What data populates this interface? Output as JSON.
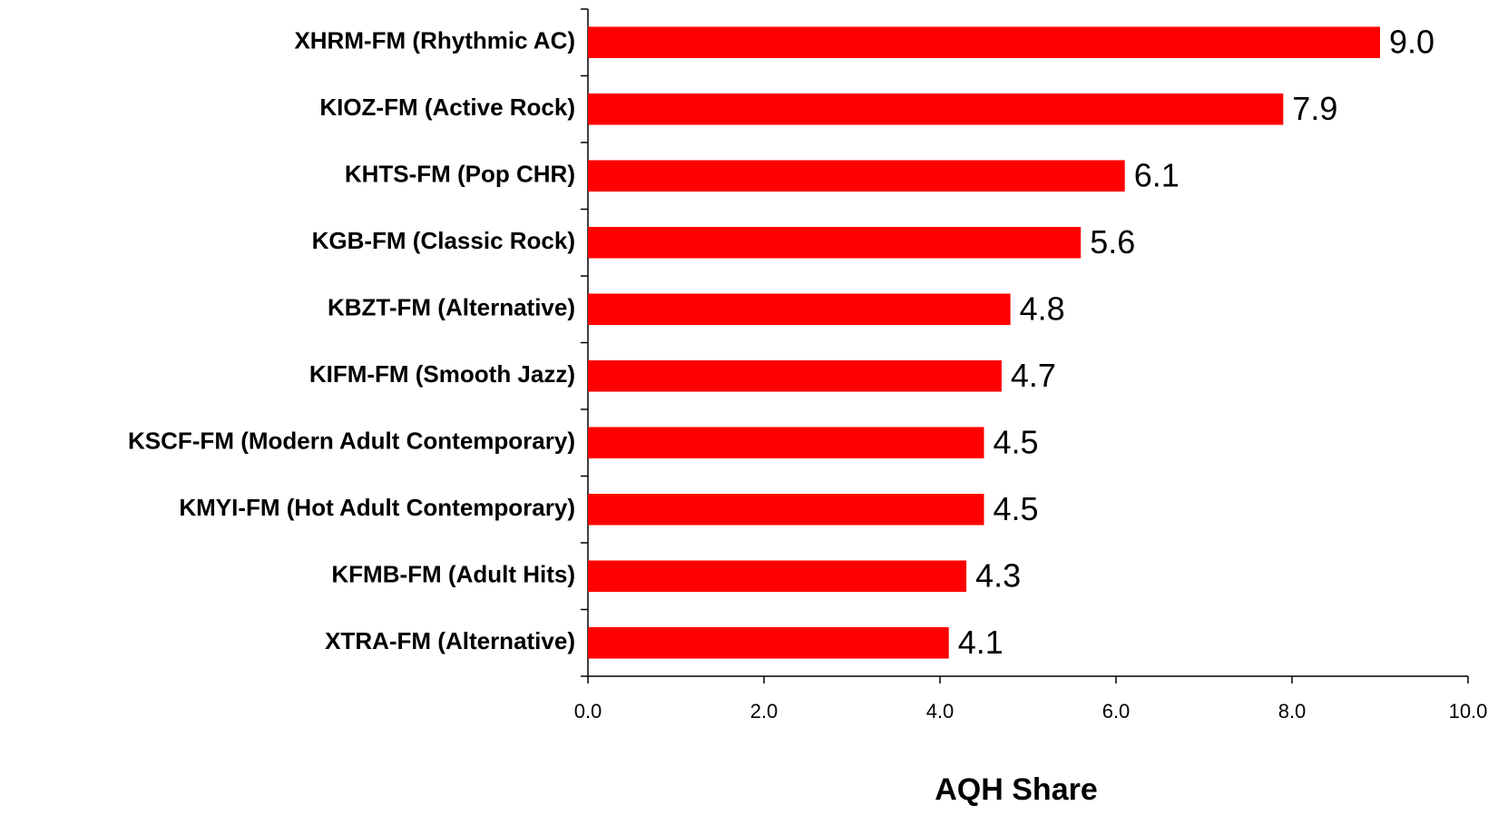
{
  "chart_data": {
    "type": "hbar",
    "x_label": "AQH Share",
    "categories": [
      "XHRM-FM (Rhythmic AC)",
      "KIOZ-FM (Active Rock)",
      "KHTS-FM (Pop CHR)",
      "KGB-FM (Classic Rock)",
      "KBZT-FM (Alternative)",
      "KIFM-FM (Smooth Jazz)",
      "KSCF-FM (Modern Adult Contemporary)",
      "KMYI-FM (Hot Adult Contemporary)",
      "KFMB-FM (Adult Hits)",
      "XTRA-FM (Alternative)"
    ],
    "values": [
      9.0,
      7.9,
      6.1,
      5.6,
      4.8,
      4.7,
      4.5,
      4.5,
      4.3,
      4.1
    ],
    "value_labels": [
      "9.0",
      "7.9",
      "6.1",
      "5.6",
      "4.8",
      "4.7",
      "4.5",
      "4.5",
      "4.3",
      "4.1"
    ],
    "color": "#ff0000",
    "xlim": [
      0,
      10
    ],
    "xticks": [
      {
        "value": 0,
        "label": "0.0"
      },
      {
        "value": 2,
        "label": "2.0"
      },
      {
        "value": 4,
        "label": "4.0"
      },
      {
        "value": 6,
        "label": "6.0"
      },
      {
        "value": 8,
        "label": "8.0"
      },
      {
        "value": 10,
        "label": "10.0"
      }
    ],
    "grid": false
  }
}
